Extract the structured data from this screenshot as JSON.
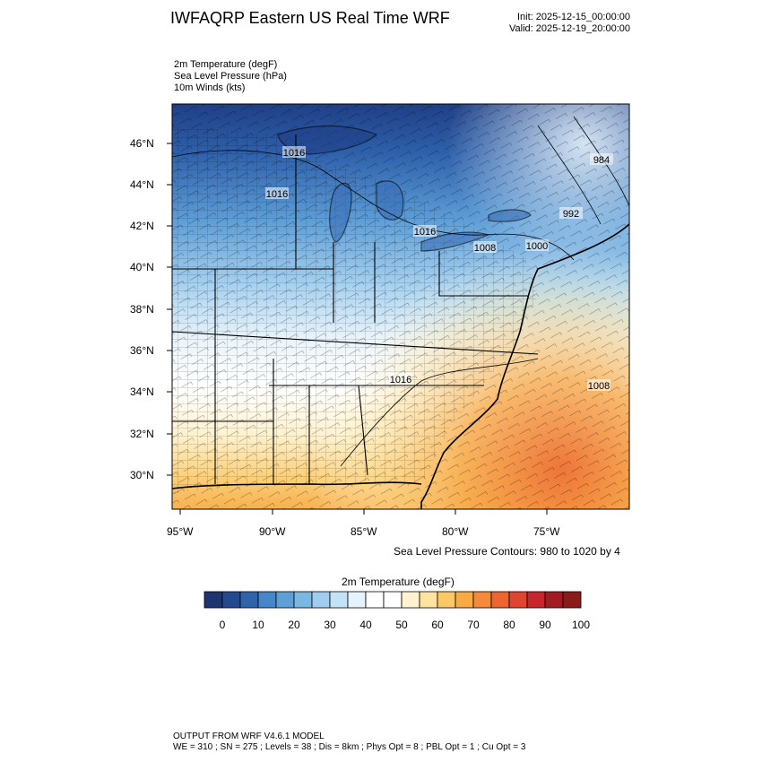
{
  "header": {
    "title": "IWFAQRP Eastern US Real Time WRF",
    "init": "Init: 2025-12-15_00:00:00",
    "valid": "Valid: 2025-12-19_20:00:00"
  },
  "fields": {
    "line1": "2m Temperature   (degF)",
    "line2": "Sea Level Pressure   (hPa)",
    "line3": "10m Winds   (kts)"
  },
  "map": {
    "lat_labels": [
      "46°N",
      "44°N",
      "42°N",
      "40°N",
      "38°N",
      "36°N",
      "34°N",
      "32°N",
      "30°N"
    ],
    "lon_labels": [
      "95°W",
      "90°W",
      "85°W",
      "80°W",
      "75°W"
    ],
    "isobar_labels": [
      "1016",
      "1016",
      "1016",
      "1016",
      "1008",
      "1000",
      "992",
      "984",
      "1008"
    ],
    "colors": {
      "cold": "#1f3f86",
      "cool": "#5aa0d8",
      "neutral": "#ffffff",
      "warm": "#f7a94a",
      "hot": "#e9572e"
    }
  },
  "contour_note": "Sea Level Pressure Contours: 980 to 1020 by 4",
  "colorbar": {
    "title": "2m Temperature  (degF)",
    "colors": [
      "#1d3470",
      "#23498f",
      "#2f64ad",
      "#4786c8",
      "#5d9fd6",
      "#7bb7e3",
      "#9fcdef",
      "#c4e2f7",
      "#e6f3fc",
      "#ffffff",
      "#ffffff",
      "#fff2cf",
      "#fde39f",
      "#fcc865",
      "#f8aa45",
      "#f48a3a",
      "#ec6632",
      "#e04532",
      "#c6262c",
      "#a31b22",
      "#8b1a1a"
    ],
    "labels": [
      "0",
      "10",
      "20",
      "30",
      "40",
      "50",
      "60",
      "70",
      "80",
      "90",
      "100"
    ]
  },
  "footer": {
    "line1": "OUTPUT FROM WRF V4.6.1 MODEL",
    "line2": "WE = 310 ; SN = 275 ; Levels = 38 ; Dis = 8km ; Phys Opt = 8 ; PBL Opt = 1 ; Cu Opt = 3"
  }
}
